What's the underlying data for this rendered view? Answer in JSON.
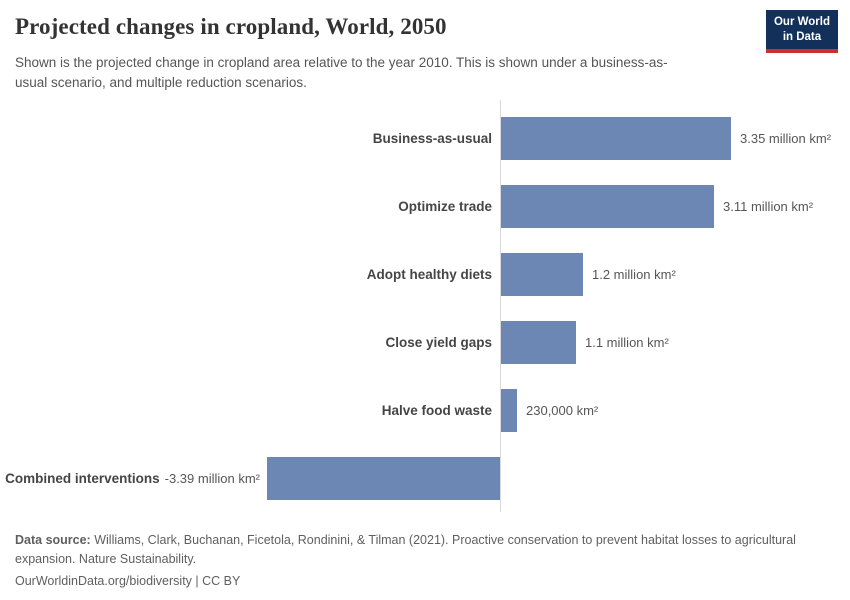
{
  "header": {
    "title": "Projected changes in cropland, World, 2050",
    "subtitle": "Shown is the projected change in cropland area relative to the year 2010. This is shown under a business-as-usual scenario, and multiple reduction scenarios."
  },
  "logo": {
    "line1": "Our World",
    "line2": "in Data",
    "bg_color": "#12305a",
    "accent_color": "#c9302f"
  },
  "chart_data": {
    "type": "bar",
    "orientation": "horizontal",
    "title": "Projected changes in cropland, World, 2050",
    "unit": "million km²",
    "categories": [
      "Business-as-usual",
      "Optimize trade",
      "Adopt healthy diets",
      "Close yield gaps",
      "Halve food waste",
      "Combined interventions"
    ],
    "values_million_km2": [
      3.35,
      3.11,
      1.2,
      1.1,
      0.23,
      -3.39
    ],
    "value_labels": [
      "3.35 million km²",
      "3.11 million km²",
      "1.2 million km²",
      "1.1 million km²",
      "230,000 km²",
      "-3.39 million km²"
    ],
    "xlim": [
      -3.39,
      3.35
    ],
    "grid": false,
    "bar_color": "#6d87b4",
    "axis_color": "#d9d9d9"
  },
  "footer": {
    "source_label": "Data source:",
    "source_text": "Williams, Clark, Buchanan, Ficetola, Rondinini, & Tilman (2021). Proactive conservation to prevent habitat losses to agricultural expansion. Nature Sustainability.",
    "link_text": "OurWorldinData.org/biodiversity | CC BY"
  }
}
